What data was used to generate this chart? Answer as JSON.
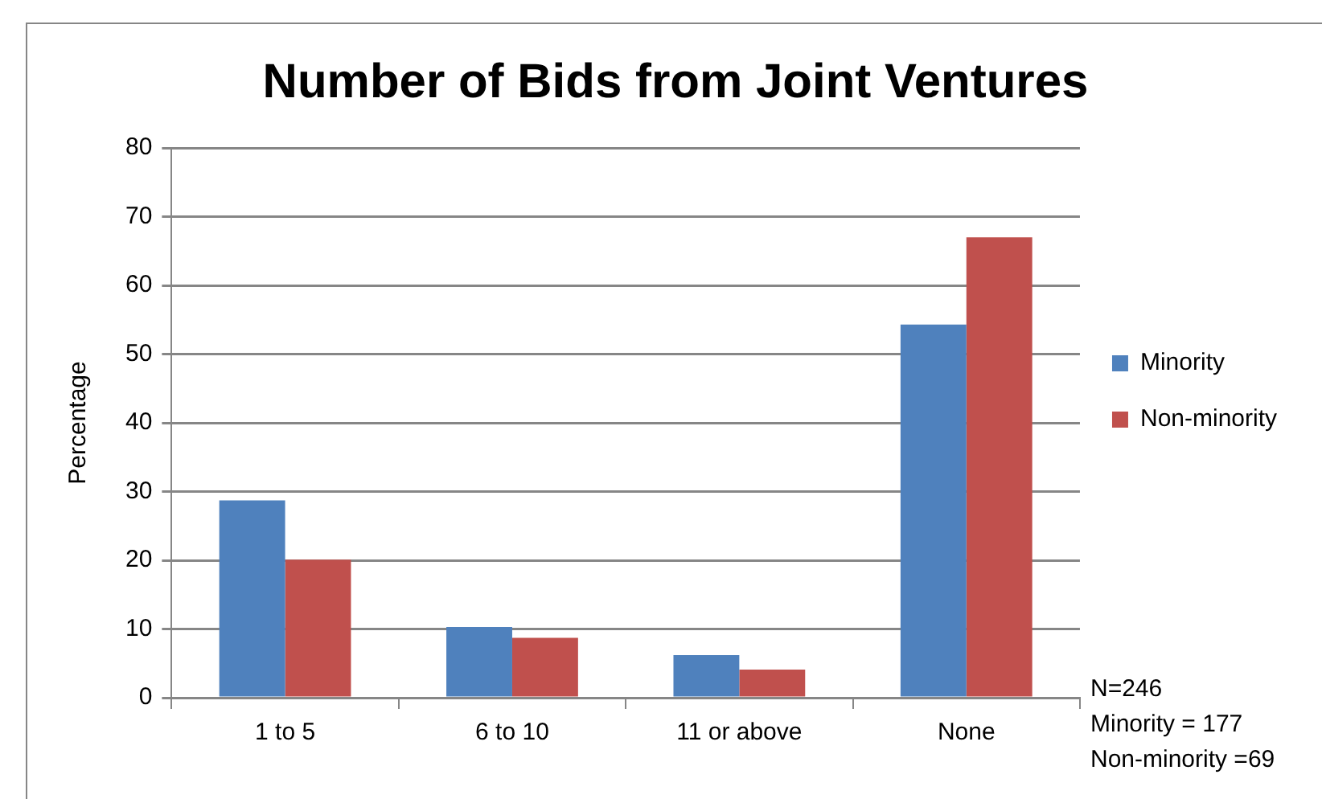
{
  "chart_data": {
    "type": "bar",
    "title": "Number of Bids from Joint Ventures",
    "ylabel": "Percentage",
    "categories": [
      "1 to 5",
      "6 to 10",
      "11 or above",
      "None"
    ],
    "series": [
      {
        "name": "Minority",
        "color": "#4f81bd",
        "values": [
          28.7,
          10.3,
          6.2,
          54.3
        ]
      },
      {
        "name": "Non-minority",
        "color": "#c0504d",
        "values": [
          20.1,
          8.7,
          4.1,
          67
        ]
      }
    ],
    "ylim": [
      0,
      80
    ],
    "yticks": [
      0,
      10,
      20,
      30,
      40,
      50,
      60,
      70,
      80
    ],
    "grid": "y",
    "legend": "right",
    "annotations": [
      "N=246",
      "Minority = 177",
      "Non-minority =69"
    ]
  }
}
